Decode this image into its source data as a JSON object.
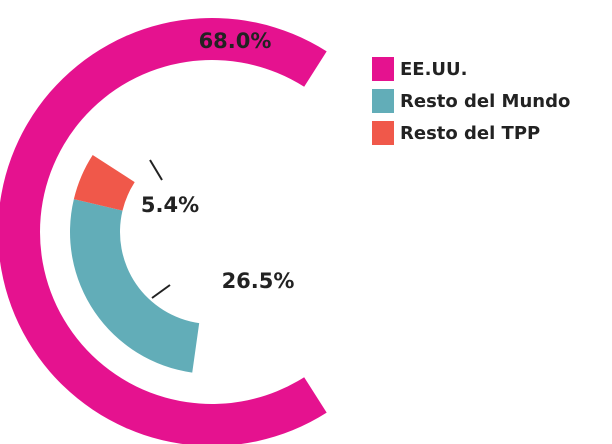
{
  "chart_data": {
    "type": "donut",
    "categories": [
      "EE.UU.",
      "Resto del Mundo",
      "Resto del TPP"
    ],
    "values": [
      68.0,
      26.5,
      5.4
    ],
    "value_labels": [
      "68.0%",
      "26.5%",
      "5.4%"
    ],
    "colors": [
      "#e5128f",
      "#62adb8",
      "#f0584a"
    ]
  }
}
